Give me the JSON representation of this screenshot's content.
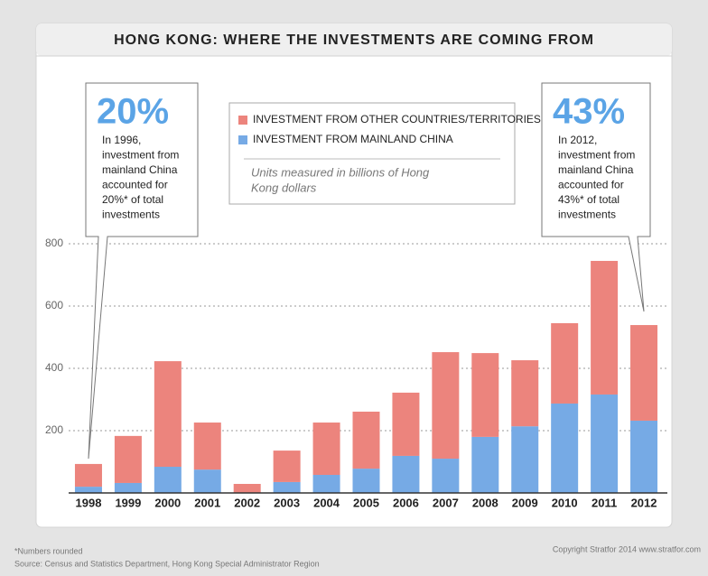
{
  "chart_data": {
    "type": "bar",
    "stacked": true,
    "title": "HONG KONG: WHERE THE INVESTMENTS ARE COMING FROM",
    "categories": [
      "1998",
      "1999",
      "2000",
      "2001",
      "2002",
      "2003",
      "2004",
      "2005",
      "2006",
      "2007",
      "2008",
      "2009",
      "2010",
      "2011",
      "2012"
    ],
    "series": [
      {
        "name": "INVESTMENT FROM OTHER COUNTRIES/TERRITORIES",
        "color": "#ec847d",
        "values": [
          73,
          151,
          339,
          151,
          29,
          101,
          168,
          183,
          203,
          342,
          269,
          212,
          258,
          429,
          307
        ]
      },
      {
        "name": "INVESTMENT FROM MAINLAND CHINA",
        "color": "#76aae5",
        "values": [
          20,
          32,
          84,
          75,
          0,
          35,
          58,
          78,
          119,
          110,
          180,
          214,
          287,
          316,
          232
        ]
      }
    ],
    "legend_note": [
      "Units measured in billions of Hong",
      "Kong dollars"
    ],
    "ylim": [
      0,
      800
    ],
    "yticks": [
      200,
      400,
      600,
      800
    ],
    "grid": true,
    "callouts": [
      {
        "figure": "20%",
        "lines": [
          "In 1996,",
          "investment from",
          "mainland China",
          "accounted for",
          "20%* of total",
          "investments"
        ],
        "category": 0
      },
      {
        "figure": "43%",
        "lines": [
          "In 2012,",
          "investment from",
          "mainland China",
          "accounted for",
          "43%* of total",
          "investments"
        ],
        "category": 14
      }
    ],
    "footnote": "*Numbers rounded",
    "source": "Source: Census and Statistics Department, Hong Kong Special Administrator Region",
    "copyright": "Copyright Stratfor 2014 www.stratfor.com"
  }
}
